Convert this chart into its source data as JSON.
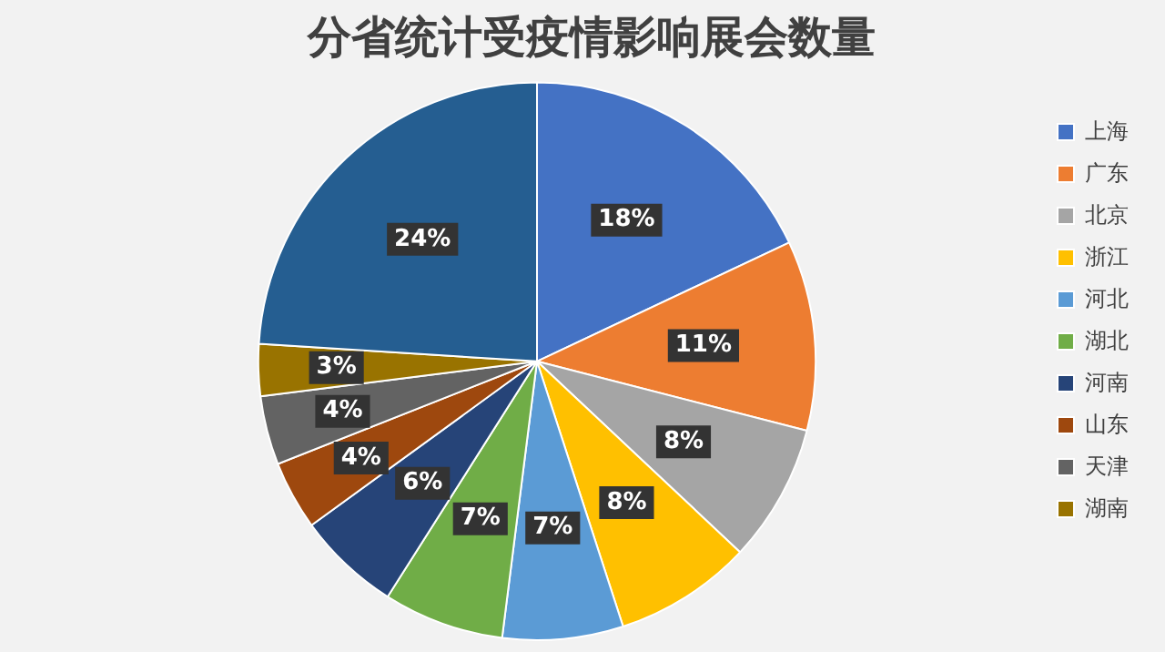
{
  "chart_data": {
    "type": "pie",
    "title": "分省统计受疫情影响展会数量",
    "categories": [
      "上海",
      "广东",
      "北京",
      "浙江",
      "河北",
      "湖北",
      "河南",
      "山东",
      "天津",
      "湖南",
      null
    ],
    "values": [
      18,
      11,
      8,
      8,
      7,
      7,
      6,
      4,
      4,
      3,
      24
    ],
    "value_labels": [
      "18%",
      "11%",
      "8%",
      "8%",
      "7%",
      "7%",
      "6%",
      "4%",
      "4%",
      "3%",
      "24%"
    ],
    "colors": [
      "#4472c4",
      "#ed7d31",
      "#a5a5a5",
      "#ffc000",
      "#5b9bd5",
      "#70ad47",
      "#264478",
      "#9e480e",
      "#636363",
      "#997300",
      "#255e91"
    ],
    "legend": "right"
  }
}
